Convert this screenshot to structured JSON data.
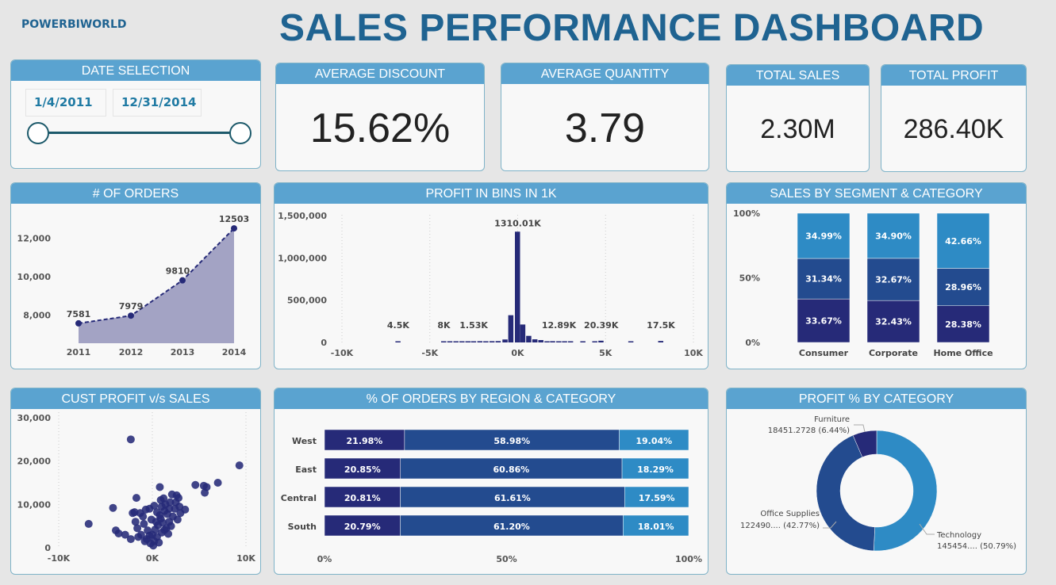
{
  "brand": "POWERBIWORLD",
  "title": "SALES PERFORMANCE DASHBOARD",
  "colors": {
    "header": "#5aa3d0",
    "title": "#1f6391",
    "navy": "#262a78",
    "mid": "#234b8f",
    "light": "#2e8bc5",
    "area": "#a3a3c4"
  },
  "date_selection": {
    "title": "DATE SELECTION",
    "start": "1/4/2011",
    "end": "12/31/2014",
    "slider_start": 0,
    "slider_end": 1
  },
  "kpis": {
    "avg_discount": {
      "title": "AVERAGE DISCOUNT",
      "value": "15.62%"
    },
    "avg_quantity": {
      "title": "AVERAGE QUANTITY",
      "value": "3.79"
    },
    "total_sales": {
      "title": "TOTAL SALES",
      "value": "2.30M"
    },
    "total_profit": {
      "title": "TOTAL PROFIT",
      "value": "286.40K"
    }
  },
  "chart_data": [
    {
      "id": "orders",
      "type": "area",
      "title": "# OF ORDERS",
      "categories": [
        "2011",
        "2012",
        "2013",
        "2014"
      ],
      "values": [
        7581,
        7979,
        9810,
        12503
      ],
      "data_labels": [
        "7581",
        "7979",
        "9810",
        "12503"
      ],
      "yticks": [
        {
          "v": 8000,
          "label": "8,000"
        },
        {
          "v": 10000,
          "label": "10,000"
        },
        {
          "v": 12000,
          "label": "12,000"
        }
      ],
      "ylim": [
        6550,
        13000
      ]
    },
    {
      "id": "profit_bins",
      "type": "bar",
      "title": "PROFIT IN BINS IN 1K",
      "xlim": [
        -10000,
        10000
      ],
      "ylim": [
        0,
        1500000
      ],
      "grid": true,
      "xticks": [
        {
          "v": -10000,
          "label": "-10K"
        },
        {
          "v": -5000,
          "label": "-5K"
        },
        {
          "v": 0,
          "label": "0K"
        },
        {
          "v": 5000,
          "label": "5K"
        },
        {
          "v": 10000,
          "label": "10K"
        }
      ],
      "yticks": [
        {
          "v": 0,
          "label": "0"
        },
        {
          "v": 500000,
          "label": "500,000"
        },
        {
          "v": 1000000,
          "label": "1,000,000"
        },
        {
          "v": 1500000,
          "label": "1,500,000"
        }
      ],
      "bins": [
        {
          "x": -6.8,
          "y": 4500,
          "label": "4.5K"
        },
        {
          "x": -4.2,
          "y": 8000,
          "label": "8K"
        },
        {
          "x": -3.85,
          "y": 3000
        },
        {
          "x": -3.5,
          "y": 3000
        },
        {
          "x": -3.16,
          "y": 3000
        },
        {
          "x": -2.82,
          "y": 3000
        },
        {
          "x": -2.5,
          "y": 1530,
          "label": "1.53K"
        },
        {
          "x": -2.14,
          "y": 15000
        },
        {
          "x": -1.8,
          "y": 6000
        },
        {
          "x": -1.45,
          "y": 15000
        },
        {
          "x": -1.1,
          "y": 16000
        },
        {
          "x": -0.71,
          "y": 35000
        },
        {
          "x": -0.38,
          "y": 322000
        },
        {
          "x": 0,
          "y": 1310010,
          "label": "1310.01K"
        },
        {
          "x": 0.3,
          "y": 212000
        },
        {
          "x": 0.64,
          "y": 78000
        },
        {
          "x": 0.99,
          "y": 37000
        },
        {
          "x": 1.33,
          "y": 28000
        },
        {
          "x": 1.68,
          "y": 6000
        },
        {
          "x": 2.0,
          "y": 15000
        },
        {
          "x": 2.35,
          "y": 12890,
          "label": "12.89K"
        },
        {
          "x": 2.68,
          "y": 4000
        },
        {
          "x": 3.02,
          "y": 4000
        },
        {
          "x": 3.72,
          "y": 4000
        },
        {
          "x": 4.4,
          "y": 4000
        },
        {
          "x": 4.75,
          "y": 20390,
          "label": "20.39K"
        },
        {
          "x": 6.45,
          "y": 4000
        },
        {
          "x": 8.15,
          "y": 17500,
          "label": "17.5K"
        }
      ]
    },
    {
      "id": "segment",
      "type": "stacked-bar",
      "title": "SALES BY SEGMENT & CATEGORY",
      "categories": [
        "Consumer",
        "Corporate",
        "Home Office"
      ],
      "series": [
        {
          "values": [
            33.67,
            32.43,
            28.38
          ],
          "labels": [
            "33.67%",
            "32.43%",
            "28.38%"
          ]
        },
        {
          "values": [
            31.34,
            32.67,
            28.96
          ],
          "labels": [
            "31.34%",
            "32.67%",
            "28.96%"
          ]
        },
        {
          "values": [
            34.99,
            34.9,
            42.66
          ],
          "labels": [
            "34.99%",
            "34.90%",
            "42.66%"
          ]
        }
      ],
      "yticks": [
        "0%",
        "50%",
        "100%"
      ],
      "ylim": [
        0,
        100
      ]
    },
    {
      "id": "scatter",
      "type": "scatter",
      "title": "CUST PROFIT v/s SALES",
      "xlim": [
        -10000,
        10000
      ],
      "ylim": [
        0,
        30000
      ],
      "grid": true,
      "xticks": [
        {
          "v": -10000,
          "label": "-10K"
        },
        {
          "v": 0,
          "label": "0K"
        },
        {
          "v": 10000,
          "label": "10K"
        }
      ],
      "yticks": [
        {
          "v": 0,
          "label": "0"
        },
        {
          "v": 10000,
          "label": "10,000"
        },
        {
          "v": 20000,
          "label": "20,000"
        },
        {
          "v": 30000,
          "label": "30,000"
        }
      ],
      "points": [
        [
          -2300,
          25000
        ],
        [
          9300,
          19000
        ],
        [
          7000,
          15000
        ],
        [
          4600,
          14500
        ],
        [
          5500,
          14300
        ],
        [
          5800,
          14000
        ],
        [
          5600,
          12700
        ],
        [
          800,
          14000
        ],
        [
          -1700,
          11500
        ],
        [
          -4200,
          9200
        ],
        [
          -6800,
          5500
        ],
        [
          -3900,
          4000
        ],
        [
          -3600,
          3300
        ],
        [
          -2900,
          3000
        ],
        [
          -2300,
          2000
        ],
        [
          -2100,
          8000
        ],
        [
          -1900,
          8200
        ],
        [
          -1800,
          6000
        ],
        [
          -1600,
          4500
        ],
        [
          -1300,
          8000
        ],
        [
          -700,
          8800
        ],
        [
          -300,
          9000
        ],
        [
          200,
          9700
        ],
        [
          900,
          11000
        ],
        [
          1200,
          11400
        ],
        [
          2100,
          12300
        ],
        [
          2600,
          12100
        ],
        [
          2500,
          10500
        ],
        [
          2900,
          9500
        ],
        [
          3500,
          8800
        ],
        [
          3000,
          8000
        ],
        [
          2700,
          6500
        ],
        [
          1800,
          6000
        ],
        [
          1500,
          4500
        ],
        [
          1000,
          3500
        ],
        [
          500,
          2500
        ],
        [
          200,
          1500
        ],
        [
          -200,
          1000
        ],
        [
          -500,
          4000
        ],
        [
          -900,
          5500
        ],
        [
          -1200,
          3000
        ],
        [
          -1500,
          2500
        ],
        [
          400,
          6000
        ],
        [
          800,
          7500
        ],
        [
          1300,
          8500
        ],
        [
          1800,
          9000
        ],
        [
          2200,
          7200
        ],
        [
          0,
          3000
        ],
        [
          300,
          4200
        ],
        [
          600,
          5200
        ],
        [
          -100,
          6500
        ],
        [
          1100,
          5800
        ],
        [
          1600,
          7800
        ],
        [
          2400,
          9000
        ],
        [
          -600,
          2000
        ],
        [
          100,
          500
        ],
        [
          700,
          1200
        ],
        [
          -300,
          2800
        ],
        [
          1000,
          9500
        ],
        [
          1900,
          10500
        ],
        [
          1400,
          10000
        ],
        [
          2800,
          11500
        ],
        [
          -1000,
          7200
        ],
        [
          500,
          8200
        ],
        [
          900,
          6700
        ],
        [
          1300,
          4100
        ],
        [
          -800,
          1500
        ],
        [
          1700,
          3200
        ],
        [
          2000,
          5000
        ]
      ]
    },
    {
      "id": "region",
      "type": "stacked-bar-horizontal",
      "title": "% OF ORDERS BY REGION & CATEGORY",
      "categories": [
        "West",
        "East",
        "Central",
        "South"
      ],
      "series": [
        {
          "values": [
            21.98,
            20.85,
            20.81,
            20.79
          ],
          "labels": [
            "21.98%",
            "20.85%",
            "20.81%",
            "20.79%"
          ]
        },
        {
          "values": [
            58.98,
            60.86,
            61.61,
            61.2
          ],
          "labels": [
            "58.98%",
            "60.86%",
            "61.61%",
            "61.20%"
          ]
        },
        {
          "values": [
            19.04,
            18.29,
            17.59,
            18.01
          ],
          "labels": [
            "19.04%",
            "18.29%",
            "17.59%",
            "18.01%"
          ]
        }
      ],
      "xticks": [
        "0%",
        "50%",
        "100%"
      ],
      "xlim": [
        0,
        100
      ]
    },
    {
      "id": "profit_pct",
      "type": "pie",
      "title": "PROFIT % BY CATEGORY",
      "slices": [
        {
          "name": "Technology",
          "value_label": "145454.... (50.79%)",
          "pct": 50.79
        },
        {
          "name": "Office Supplies",
          "value_label": "122490.... (42.77%)",
          "pct": 42.77
        },
        {
          "name": "Furniture",
          "value_label": "18451.2728 (6.44%)",
          "pct": 6.44
        }
      ]
    }
  ]
}
